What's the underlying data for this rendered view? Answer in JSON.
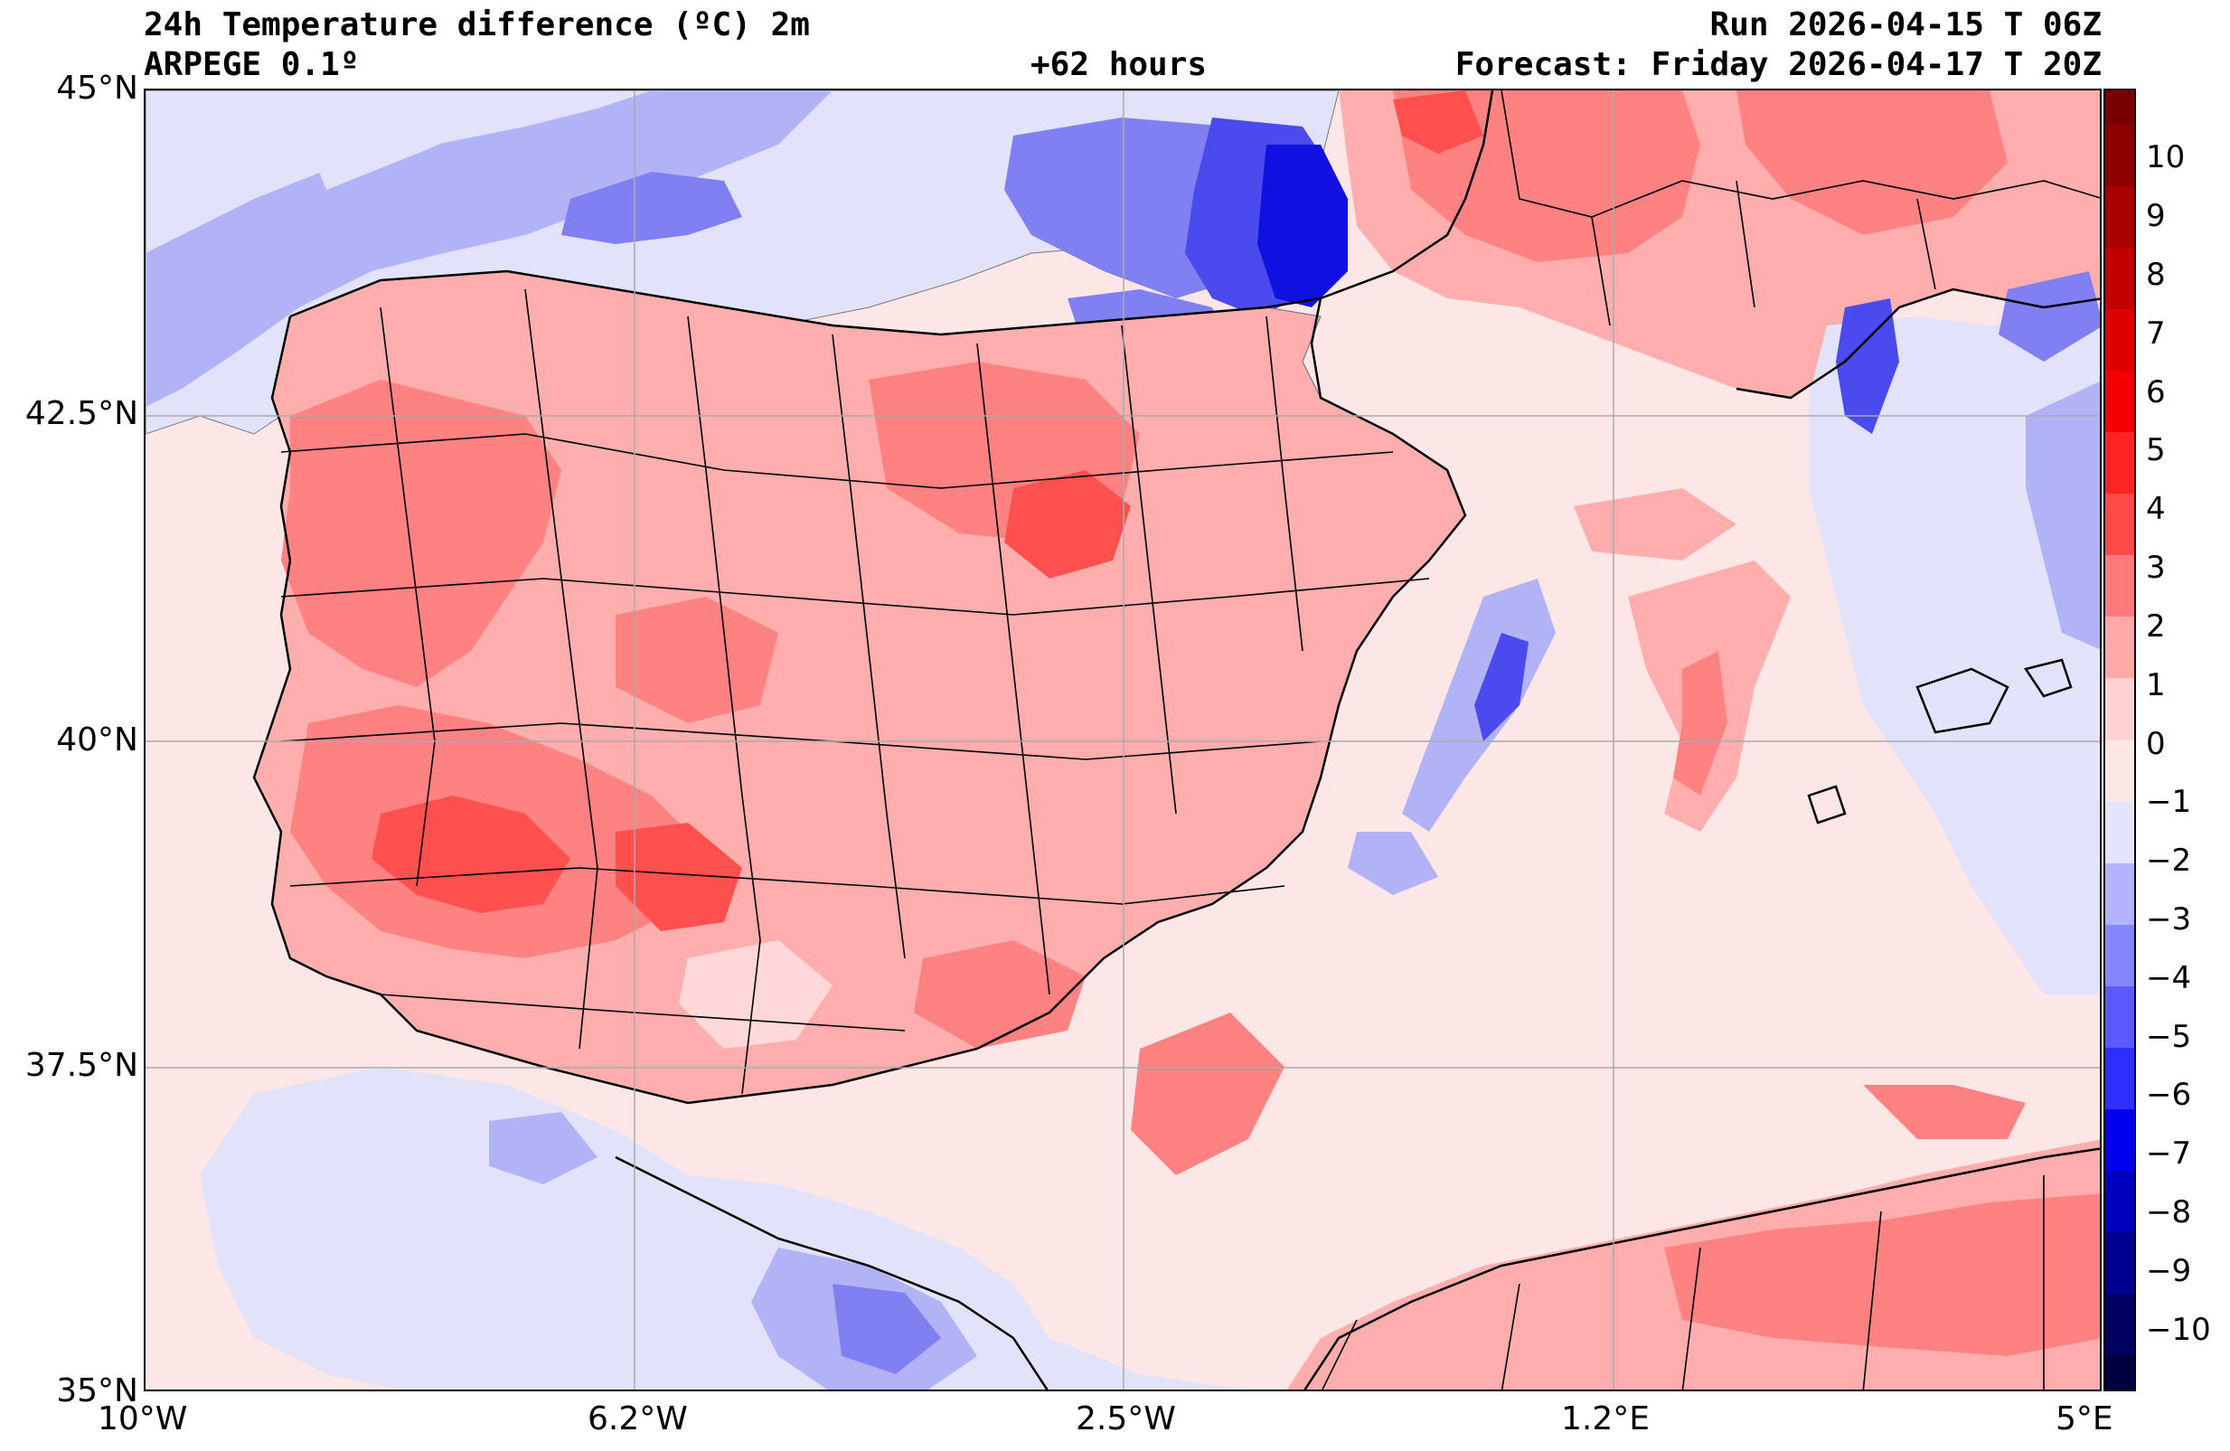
{
  "header": {
    "title_left_1": "24h Temperature difference (ºC) 2m",
    "title_left_2": "ARPEGE 0.1º",
    "title_center": "+62 hours",
    "title_right_1": "Run 2026-04-15 T 06Z",
    "title_right_2": "Forecast: Friday 2026-04-17 T 20Z"
  },
  "map": {
    "lon_range": [
      -10,
      5
    ],
    "lat_range": [
      35,
      45
    ],
    "lat_ticks": [
      "45°N",
      "42.5°N",
      "40°N",
      "37.5°N",
      "35°N"
    ],
    "lon_ticks": [
      "10°W",
      "6.2°W",
      "2.5°W",
      "1.2°E",
      "5°E"
    ],
    "grid": true
  },
  "colorbar": {
    "levels": [
      10,
      9,
      8,
      7,
      6,
      5,
      4,
      3,
      2,
      1,
      0,
      -1,
      -2,
      -3,
      -4,
      -5,
      -6,
      -7,
      -8,
      -9,
      -10
    ],
    "labels": [
      "10",
      "9",
      "8",
      "7",
      "6",
      "5",
      "4",
      "3",
      "2",
      "1",
      "0",
      "−1",
      "−2",
      "−3",
      "−4",
      "−5",
      "−6",
      "−7",
      "−8",
      "−9",
      "−10"
    ],
    "colors": [
      "#7a0000",
      "#8e0000",
      "#a80000",
      "#c20000",
      "#dc0000",
      "#f40000",
      "#ff2424",
      "#ff4a4a",
      "#ff7a7a",
      "#ffa8a8",
      "#ffd2d2",
      "#fde6e6",
      "#e4e4ff",
      "#b3b3ff",
      "#8686ff",
      "#5a5aff",
      "#2e2eff",
      "#0000f0",
      "#0000c0",
      "#000090",
      "#000060",
      "#000040"
    ]
  },
  "legend_colors": {
    "warm_1": "#ffd9d9",
    "warm_2": "#ffaeae",
    "warm_3": "#ff8282",
    "warm_4": "#ff5050",
    "near_zero": "#fde6e6",
    "cool_1": "#e2e2fb",
    "cool_2": "#b2b2f6",
    "cool_3": "#8080f3",
    "cool_4": "#4a4aee",
    "cool_5": "#1010e0"
  }
}
